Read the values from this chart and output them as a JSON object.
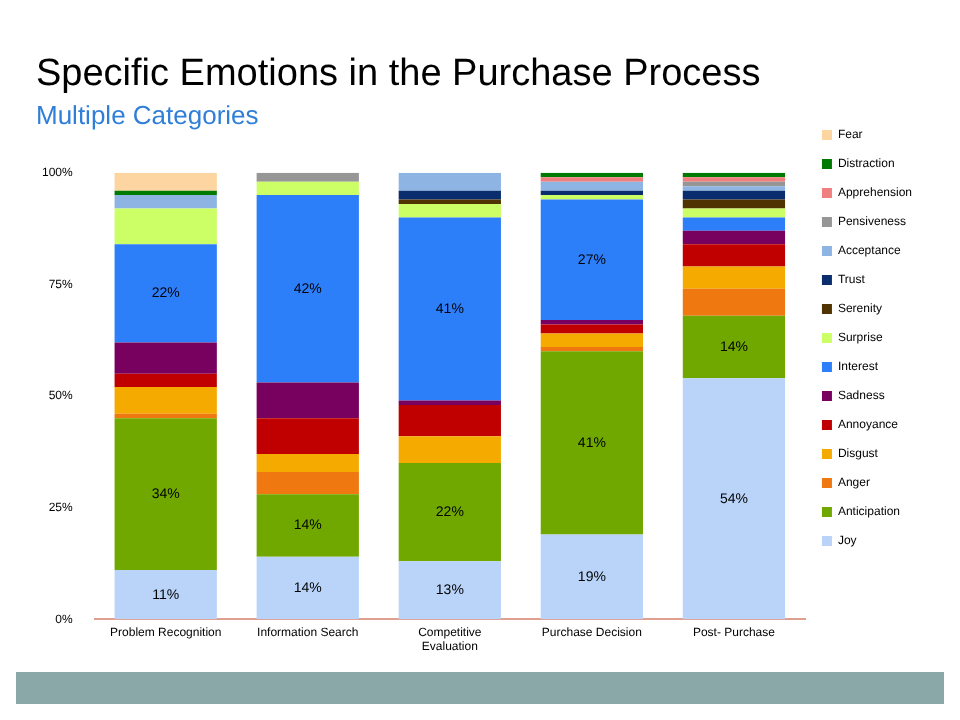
{
  "chart_data": {
    "type": "bar",
    "title": "Specific Emotions in the Purchase Process",
    "subtitle": "Multiple Categories",
    "stacked": true,
    "categories": [
      "Problem Recognition",
      "Information Search",
      "Competitive Evaluation",
      "Purchase Decision",
      "Post- Purchase"
    ],
    "series": [
      {
        "name": "Joy",
        "color": "#b9d3f9",
        "values": [
          11,
          14,
          13,
          19,
          54
        ],
        "value_labels": [
          "11%",
          "14%",
          "13%",
          "19%",
          "54%"
        ]
      },
      {
        "name": "Anticipation",
        "color": "#70a800",
        "values": [
          34,
          14,
          22,
          41,
          14
        ],
        "value_labels": [
          "34%",
          "14%",
          "22%",
          "41%",
          "14%"
        ]
      },
      {
        "name": "Anger",
        "color": "#f07810",
        "values": [
          1,
          5,
          0,
          1,
          6
        ]
      },
      {
        "name": "Disgust",
        "color": "#f5aa00",
        "values": [
          6,
          4,
          6,
          3,
          5
        ]
      },
      {
        "name": "Annoyance",
        "color": "#c00000",
        "values": [
          3,
          8,
          7,
          2,
          5
        ]
      },
      {
        "name": "Sadness",
        "color": "#78005f",
        "values": [
          7,
          8,
          1,
          1,
          3
        ]
      },
      {
        "name": "Interest",
        "color": "#2d7ff9",
        "values": [
          22,
          42,
          41,
          27,
          3
        ],
        "value_labels": [
          "22%",
          "42%",
          "41%",
          "27%",
          null
        ]
      },
      {
        "name": "Surprise",
        "color": "#ccff66",
        "values": [
          8,
          3,
          3,
          1,
          2
        ]
      },
      {
        "name": "Serenity",
        "color": "#4f3300",
        "values": [
          0,
          0,
          1,
          0,
          2
        ]
      },
      {
        "name": "Trust",
        "color": "#0a2d6e",
        "values": [
          0,
          0,
          2,
          1,
          2
        ]
      },
      {
        "name": "Acceptance",
        "color": "#8eb4e3",
        "values": [
          3,
          0,
          4,
          2,
          1
        ]
      },
      {
        "name": "Pensiveness",
        "color": "#969696",
        "values": [
          0,
          2,
          0,
          0,
          1
        ]
      },
      {
        "name": "Apprehension",
        "color": "#f08080",
        "values": [
          0,
          0,
          0,
          1,
          1
        ]
      },
      {
        "name": "Distraction",
        "color": "#007a00",
        "values": [
          1,
          0,
          0,
          1,
          1
        ]
      },
      {
        "name": "Fear",
        "color": "#fcd5a0",
        "values": [
          4,
          0,
          0,
          0,
          0
        ]
      }
    ],
    "ylim": [
      0,
      100
    ],
    "yticks": [
      {
        "value": 0,
        "label": "0%"
      },
      {
        "value": 25,
        "label": "25%"
      },
      {
        "value": 50,
        "label": "50%"
      },
      {
        "value": 75,
        "label": "75%"
      },
      {
        "value": 100,
        "label": "100%"
      }
    ],
    "grid": false,
    "legend": "right"
  }
}
